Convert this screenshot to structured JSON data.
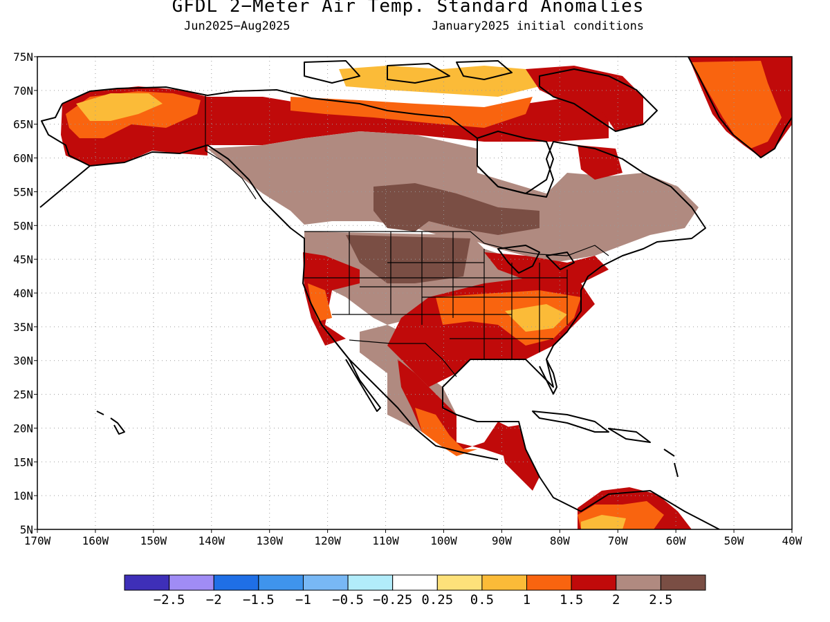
{
  "title": "GFDL 2−Meter Air Temp. Standard Anomalies",
  "subtitle_left": "Jun2025−Aug2025",
  "subtitle_right": "January2025 initial conditions",
  "map": {
    "lat_labels": [
      "75N",
      "70N",
      "65N",
      "60N",
      "55N",
      "50N",
      "45N",
      "40N",
      "35N",
      "30N",
      "25N",
      "20N",
      "15N",
      "10N",
      "5N"
    ],
    "lon_labels": [
      "170W",
      "160W",
      "150W",
      "140W",
      "130W",
      "120W",
      "110W",
      "100W",
      "90W",
      "80W",
      "70W",
      "60W",
      "50W",
      "40W"
    ],
    "extent": {
      "lon": [
        -170,
        -40
      ],
      "lat": [
        5,
        75
      ]
    }
  },
  "colorbar": {
    "colors": [
      "#3e2fb8",
      "#a08cf5",
      "#1f6fe6",
      "#3f94ec",
      "#78b8f5",
      "#b2ecfa",
      "#ffffff",
      "#fde17a",
      "#fbbb38",
      "#f9640f",
      "#c00a0a",
      "#b08a80",
      "#7a4e44"
    ],
    "labels": [
      "−2.5",
      "−2",
      "−1.5",
      "−1",
      "−0.5",
      "−0.25",
      "0.25",
      "0.5",
      "1",
      "1.5",
      "2",
      "2.5"
    ]
  }
}
